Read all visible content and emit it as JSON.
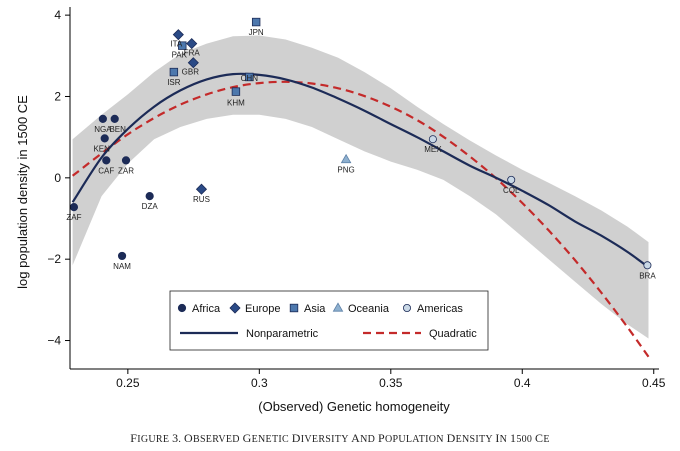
{
  "chart_data": {
    "type": "scatter",
    "title": "",
    "xlabel": "(Observed) Genetic homogeneity",
    "ylabel": "log population density in 1500 CE",
    "xlim": [
      0.228,
      0.452
    ],
    "ylim": [
      -4.7,
      4.2
    ],
    "xticks": [
      {
        "v": 0.25,
        "label": "0.25"
      },
      {
        "v": 0.3,
        "label": "0.3"
      },
      {
        "v": 0.35,
        "label": "0.35"
      },
      {
        "v": 0.4,
        "label": "0.4"
      },
      {
        "v": 0.45,
        "label": "0.45"
      }
    ],
    "yticks": [
      {
        "v": 4,
        "label": "4"
      },
      {
        "v": 2,
        "label": "2"
      },
      {
        "v": 0,
        "label": "0"
      },
      {
        "v": -2,
        "label": "−2"
      },
      {
        "v": -4,
        "label": "−4"
      }
    ],
    "points": [
      {
        "region": "Africa",
        "x": 0.2295,
        "y": -0.72,
        "label": "ZAF"
      },
      {
        "region": "Africa",
        "x": 0.2405,
        "y": 1.45,
        "label": "NGA"
      },
      {
        "region": "Africa",
        "x": 0.245,
        "y": 1.45,
        "label": "BEN"
      },
      {
        "region": "Africa",
        "x": 0.2412,
        "y": 0.97,
        "label": "KEN"
      },
      {
        "region": "Africa",
        "x": 0.2418,
        "y": 0.43,
        "label": "CAF"
      },
      {
        "region": "Africa",
        "x": 0.2493,
        "y": 0.43,
        "label": "ZAR"
      },
      {
        "region": "Africa",
        "x": 0.2478,
        "y": -1.92,
        "label": "NAM"
      },
      {
        "region": "Africa",
        "x": 0.2583,
        "y": -0.45,
        "label": "DZA"
      },
      {
        "region": "Europe",
        "x": 0.2692,
        "y": 3.52,
        "label": "ITA"
      },
      {
        "region": "Europe",
        "x": 0.2743,
        "y": 3.3,
        "label": "FRA"
      },
      {
        "region": "Europe",
        "x": 0.2749,
        "y": 2.83,
        "label": "GBR"
      },
      {
        "region": "Europe",
        "x": 0.278,
        "y": -0.28,
        "label": "RUS"
      },
      {
        "region": "Asia",
        "x": 0.2707,
        "y": 3.25,
        "label": "PAK"
      },
      {
        "region": "Asia",
        "x": 0.2675,
        "y": 2.6,
        "label": "ISR"
      },
      {
        "region": "Asia",
        "x": 0.2988,
        "y": 3.83,
        "label": "JPN"
      },
      {
        "region": "Asia",
        "x": 0.2962,
        "y": 2.48,
        "label": "CHN"
      },
      {
        "region": "Asia",
        "x": 0.2911,
        "y": 2.12,
        "label": "KHM"
      },
      {
        "region": "Oceania",
        "x": 0.333,
        "y": 0.45,
        "label": "PNG"
      },
      {
        "region": "Americas",
        "x": 0.366,
        "y": 0.95,
        "label": "MEX"
      },
      {
        "region": "Americas",
        "x": 0.3958,
        "y": -0.05,
        "label": "COL"
      },
      {
        "region": "Americas",
        "x": 0.4476,
        "y": -2.15,
        "label": "BRA"
      }
    ],
    "nonparametric": {
      "name": "Nonparametric",
      "x": [
        0.229,
        0.24,
        0.25,
        0.26,
        0.27,
        0.28,
        0.29,
        0.3,
        0.31,
        0.32,
        0.33,
        0.34,
        0.35,
        0.36,
        0.37,
        0.38,
        0.39,
        0.4,
        0.41,
        0.42,
        0.43,
        0.44,
        0.448
      ],
      "y": [
        -0.6,
        0.5,
        1.2,
        1.75,
        2.15,
        2.42,
        2.55,
        2.53,
        2.42,
        2.22,
        1.95,
        1.65,
        1.32,
        1.0,
        0.65,
        0.3,
        0.0,
        -0.32,
        -0.67,
        -1.07,
        -1.42,
        -1.82,
        -2.2
      ]
    },
    "quadratic": {
      "name": "Quadratic",
      "x": [
        0.229,
        0.24,
        0.25,
        0.26,
        0.27,
        0.28,
        0.29,
        0.3,
        0.31,
        0.32,
        0.33,
        0.34,
        0.35,
        0.36,
        0.37,
        0.38,
        0.39,
        0.4,
        0.41,
        0.42,
        0.43,
        0.44,
        0.448
      ],
      "y": [
        0.05,
        0.6,
        1.07,
        1.47,
        1.8,
        2.05,
        2.23,
        2.33,
        2.36,
        2.32,
        2.2,
        2.01,
        1.75,
        1.42,
        1.01,
        0.53,
        -0.01,
        -0.62,
        -1.29,
        -2.02,
        -2.82,
        -3.67,
        -4.4
      ]
    },
    "confidence_band": {
      "x": [
        0.229,
        0.24,
        0.25,
        0.26,
        0.27,
        0.28,
        0.29,
        0.3,
        0.31,
        0.32,
        0.33,
        0.34,
        0.35,
        0.36,
        0.37,
        0.38,
        0.39,
        0.4,
        0.41,
        0.42,
        0.43,
        0.44,
        0.448
      ],
      "upper": [
        0.95,
        1.55,
        2.05,
        2.6,
        3.05,
        3.3,
        3.48,
        3.5,
        3.4,
        3.2,
        2.95,
        2.6,
        2.2,
        1.75,
        1.32,
        0.92,
        0.55,
        0.2,
        -0.12,
        -0.45,
        -0.8,
        -1.2,
        -1.58
      ],
      "lower": [
        -2.15,
        -0.45,
        0.35,
        0.95,
        1.25,
        1.45,
        1.55,
        1.55,
        1.45,
        1.25,
        0.95,
        0.65,
        0.4,
        0.2,
        -0.05,
        -0.45,
        -0.9,
        -1.45,
        -2.0,
        -2.55,
        -3.1,
        -3.6,
        -3.95
      ]
    },
    "legend": {
      "position": "bottom-center",
      "items": [
        {
          "label": "Africa",
          "marker": "circle"
        },
        {
          "label": "Europe",
          "marker": "diamond"
        },
        {
          "label": "Asia",
          "marker": "square"
        },
        {
          "label": "Oceania",
          "marker": "triangle"
        },
        {
          "label": "Americas",
          "marker": "circle-open"
        },
        {
          "label": "Nonparametric",
          "marker": "solid-line"
        },
        {
          "label": "Quadratic",
          "marker": "dashed-line"
        }
      ]
    }
  },
  "caption": {
    "figure": "Figure 3.",
    "title": "Observed Genetic Diversity and Population Density in 1500 ce"
  },
  "colors": {
    "navy": "#1c2b57",
    "marker_fill": "#2a4a86",
    "asia_fill": "#4d78ad",
    "oceania_fill": "#8eb0cf",
    "americas_fill": "#c9d8e6",
    "red": "#c42a2a",
    "band": "#d0d0d0"
  }
}
